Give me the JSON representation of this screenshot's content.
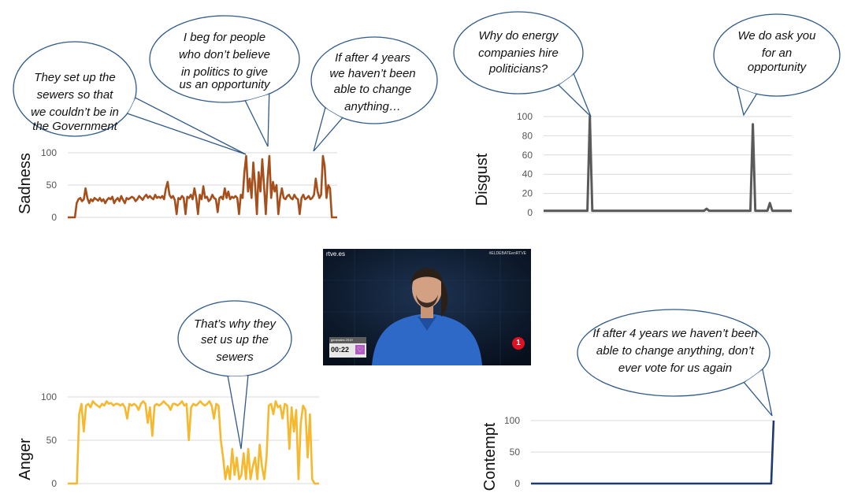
{
  "chart_data": [
    {
      "type": "line",
      "ylabel": "Sadness",
      "ylim": [
        0,
        100
      ],
      "yticks": [
        0,
        50,
        100
      ],
      "color": "#a5501c",
      "grid": true,
      "values": [
        0,
        0,
        0,
        0,
        0,
        22,
        28,
        30,
        25,
        28,
        45,
        30,
        22,
        28,
        25,
        30,
        28,
        26,
        30,
        25,
        28,
        22,
        27,
        30,
        28,
        32,
        22,
        27,
        30,
        25,
        33,
        27,
        22,
        30,
        28,
        30,
        32,
        30,
        25,
        28,
        33,
        30,
        27,
        32,
        35,
        30,
        33,
        30,
        28,
        35,
        30,
        32,
        30,
        33,
        28,
        45,
        55,
        35,
        30,
        33,
        27,
        5,
        30,
        28,
        33,
        30,
        5,
        32,
        30,
        35,
        28,
        45,
        30,
        5,
        35,
        28,
        48,
        30,
        32,
        25,
        28,
        35,
        30,
        28,
        8,
        30,
        32,
        28,
        45,
        30,
        40,
        28,
        32,
        30,
        33,
        30,
        5,
        35,
        30,
        70,
        95,
        40,
        60,
        30,
        85,
        50,
        5,
        70,
        40,
        90,
        50,
        5,
        60,
        95,
        30,
        55,
        40,
        50,
        5,
        30,
        45,
        30,
        28,
        33,
        35,
        30,
        28,
        35,
        30,
        28,
        5,
        30,
        35,
        28,
        30,
        33,
        28,
        30,
        35,
        60,
        40,
        30,
        35,
        95,
        80,
        30,
        50,
        45,
        0,
        0,
        0,
        0
      ],
      "annotations": [
        "They set up the sewers so that we couldn’t be in the Government",
        "I beg for people who don’t believe in politics to give us an opportunity",
        "If after 4 years we haven’t been able to change anything…"
      ]
    },
    {
      "type": "line",
      "ylabel": "Disgust",
      "ylim": [
        0,
        100
      ],
      "yticks": [
        0,
        20,
        40,
        60,
        80,
        100
      ],
      "color": "#5a5a5a",
      "grid": true,
      "values": [
        2,
        2,
        2,
        2,
        2,
        2,
        2,
        2,
        2,
        2,
        2,
        2,
        2,
        2,
        2,
        2,
        2,
        2,
        2,
        100,
        2,
        2,
        2,
        2,
        2,
        2,
        2,
        2,
        2,
        2,
        2,
        2,
        2,
        2,
        2,
        2,
        2,
        2,
        2,
        2,
        2,
        2,
        2,
        2,
        2,
        2,
        2,
        2,
        2,
        2,
        2,
        2,
        2,
        2,
        2,
        2,
        2,
        2,
        2,
        2,
        2,
        2,
        2,
        2,
        2,
        2,
        2,
        4,
        2,
        2,
        2,
        2,
        2,
        2,
        2,
        2,
        2,
        2,
        2,
        2,
        2,
        2,
        2,
        2,
        2,
        2,
        92,
        2,
        2,
        2,
        2,
        2,
        2,
        10,
        2,
        2,
        2,
        2,
        2,
        2,
        2,
        2,
        2
      ],
      "annotations": [
        "Why do energy companies hire politicians?",
        "We do ask you for an opportunity"
      ]
    },
    {
      "type": "line",
      "ylabel": "Anger",
      "ylim": [
        0,
        100
      ],
      "yticks": [
        0,
        50,
        100
      ],
      "color": "#f5b82e",
      "grid": true,
      "values": [
        0,
        0,
        0,
        0,
        0,
        80,
        92,
        60,
        90,
        92,
        88,
        95,
        92,
        90,
        88,
        92,
        90,
        95,
        92,
        93,
        90,
        92,
        92,
        90,
        92,
        88,
        75,
        92,
        90,
        92,
        90,
        85,
        92,
        95,
        92,
        70,
        88,
        55,
        90,
        92,
        90,
        92,
        95,
        92,
        90,
        85,
        92,
        92,
        90,
        92,
        95,
        90,
        92,
        50,
        88,
        92,
        90,
        92,
        95,
        92,
        90,
        92,
        95,
        90,
        75,
        92,
        90,
        50,
        30,
        5,
        20,
        5,
        40,
        10,
        30,
        5,
        10,
        35,
        5,
        40,
        5,
        20,
        30,
        5,
        45,
        20,
        5,
        30,
        90,
        92,
        80,
        95,
        88,
        90,
        75,
        92,
        90,
        40,
        88,
        60,
        85,
        5,
        70,
        90,
        85,
        30,
        80,
        5,
        0,
        0,
        0
      ],
      "annotations": [
        "That’s why they set us up the sewers"
      ]
    },
    {
      "type": "line",
      "ylabel": "Contempt",
      "ylim": [
        0,
        100
      ],
      "yticks": [
        0,
        50,
        100
      ],
      "color": "#1f3a6e",
      "grid": true,
      "values": [
        0,
        0,
        0,
        0,
        0,
        0,
        0,
        0,
        0,
        0,
        0,
        0,
        0,
        0,
        0,
        0,
        0,
        0,
        0,
        0,
        0,
        0,
        0,
        0,
        0,
        0,
        0,
        0,
        0,
        0,
        0,
        0,
        0,
        0,
        0,
        0,
        0,
        0,
        0,
        0,
        0,
        0,
        0,
        0,
        0,
        0,
        0,
        0,
        0,
        0,
        0,
        0,
        0,
        0,
        0,
        0,
        0,
        0,
        0,
        0,
        0,
        0,
        0,
        0,
        0,
        0,
        0,
        0,
        0,
        0,
        0,
        0,
        0,
        0,
        0,
        0,
        0,
        0,
        0,
        0,
        0,
        0,
        0,
        0,
        0,
        0,
        0,
        0,
        0,
        0,
        0,
        0,
        0,
        0,
        0,
        0,
        0,
        0,
        0,
        100
      ],
      "annotations": [
        "If after 4 years we haven’t been able to change anything, don’t ever vote for us again"
      ]
    }
  ],
  "video": {
    "channel": "rtve.es",
    "hashtag": "#ELDEBATEenRTVE",
    "election_badge": "generales 2019",
    "timer": "00:22",
    "channel_logo": "1"
  }
}
